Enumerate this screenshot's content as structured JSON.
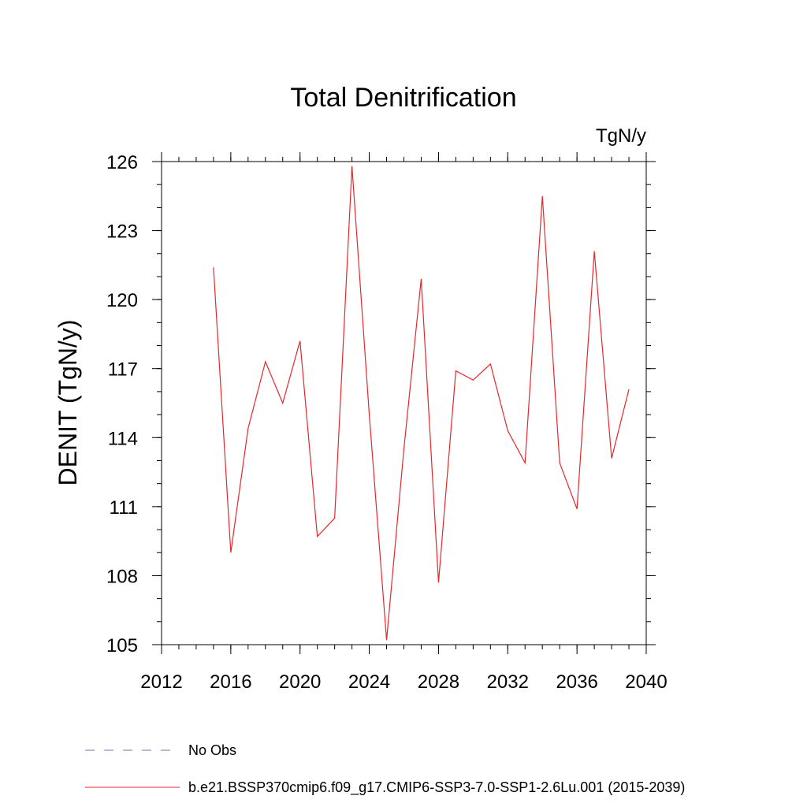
{
  "chart_data": {
    "type": "line",
    "title": "Total Denitrification",
    "units_label": "TgN/y",
    "ylabel": "DENIT  (TgN/y)",
    "xlabel": "",
    "xlim": [
      2012,
      2040
    ],
    "ylim": [
      105,
      126
    ],
    "xticks": [
      2012,
      2016,
      2020,
      2024,
      2028,
      2032,
      2036,
      2040
    ],
    "yticks": [
      105,
      108,
      111,
      114,
      117,
      120,
      123,
      126
    ],
    "grid": false,
    "legend_position": "bottom",
    "series": [
      {
        "name": "b.e21.BSSP370cmip6.f09_g17.CMIP6-SSP3-7.0-SSP1-2.6Lu.001 (2015-2039)",
        "color": "#e8262b",
        "x": [
          2015,
          2016,
          2017,
          2018,
          2019,
          2020,
          2021,
          2022,
          2023,
          2024,
          2025,
          2026,
          2027,
          2028,
          2029,
          2030,
          2031,
          2032,
          2033,
          2034,
          2035,
          2036,
          2037,
          2038,
          2039
        ],
        "y": [
          121.4,
          109.0,
          114.4,
          117.3,
          115.5,
          118.2,
          109.7,
          110.5,
          125.8,
          115.0,
          105.2,
          113.5,
          120.9,
          107.7,
          116.9,
          116.5,
          117.2,
          114.3,
          112.9,
          124.5,
          112.9,
          110.9,
          122.1,
          113.1,
          116.1
        ]
      }
    ],
    "legend": [
      {
        "label": "No Obs",
        "color": "#7a6fb0",
        "style": "dashed"
      },
      {
        "label": "b.e21.BSSP370cmip6.f09_g17.CMIP6-SSP3-7.0-SSP1-2.6Lu.001 (2015-2039)",
        "color": "#e8262b",
        "style": "solid"
      }
    ]
  }
}
